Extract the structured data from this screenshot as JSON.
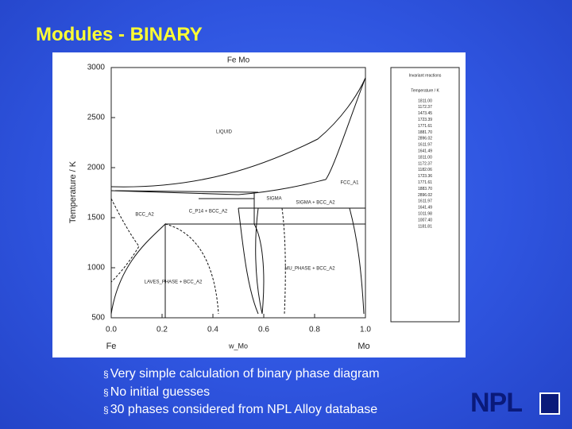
{
  "slide": {
    "title": "Modules - BINARY",
    "bullets": [
      "Very simple calculation of binary phase diagram",
      "No initial guesses",
      "30 phases considered from NPL Alloy database"
    ],
    "logo": "NPL"
  },
  "diagram": {
    "top_label": "Fe Mo",
    "y_title": "Temperature / K",
    "x_title": "w_Mo",
    "x_left": "Fe",
    "x_right": "Mo",
    "xlim": [
      0,
      1
    ],
    "ylim": [
      500,
      3000
    ],
    "xticks": [
      {
        "value": 0,
        "label": "0.0"
      },
      {
        "value": 0.2,
        "label": "0.2"
      },
      {
        "value": 0.4,
        "label": "0.4"
      },
      {
        "value": 0.6,
        "label": "0.6"
      },
      {
        "value": 0.8,
        "label": "0.8"
      },
      {
        "value": 1,
        "label": "1.0"
      }
    ],
    "yticks": [
      500,
      1000,
      1500,
      2000,
      2500,
      3000
    ],
    "regions": [
      "LIQUID",
      "BCC_A2",
      "SIGMA",
      "SIGMA + BCC_A2",
      "C_P14 + BCC_A2",
      "MU_PHASE + BCC_A2",
      "LAVES_PHASE + BCC_A2",
      "FCC_A1"
    ],
    "legend_header": [
      "Invariant reactions",
      "Temperature / K"
    ],
    "legend_values": [
      "1811.00",
      "1172.37",
      "1473.45",
      "1723.39",
      "1771.61",
      "1881.70",
      "2896.02",
      "1611.97",
      "1641.49",
      "1811.00",
      "1172.37",
      "1182.06",
      "1723.36",
      "1771.61",
      "1883.70",
      "2896.02",
      "1611.97",
      "1641.49",
      "1011.98",
      "1007.40",
      "1181.81"
    ]
  }
}
